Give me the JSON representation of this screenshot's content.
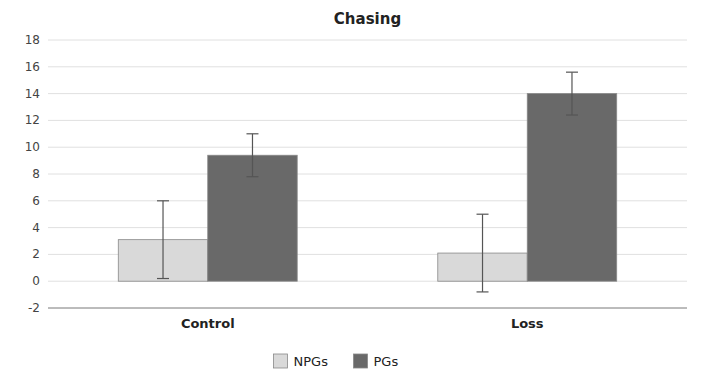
{
  "chart_data": {
    "type": "bar",
    "title": "Chasing",
    "categories": [
      "Control",
      "Loss"
    ],
    "series": [
      {
        "name": "NPGs",
        "color": "#d9d9d9",
        "values": [
          3.1,
          2.1
        ],
        "errors": [
          2.9,
          2.9
        ]
      },
      {
        "name": "PGs",
        "color": "#696969",
        "values": [
          9.4,
          14.0
        ],
        "errors": [
          1.6,
          1.6
        ]
      }
    ],
    "ylim": [
      -2,
      18
    ],
    "yticks": [
      -2,
      0,
      2,
      4,
      6,
      8,
      10,
      12,
      14,
      16,
      18
    ],
    "grid": true,
    "legend": "bottom"
  }
}
